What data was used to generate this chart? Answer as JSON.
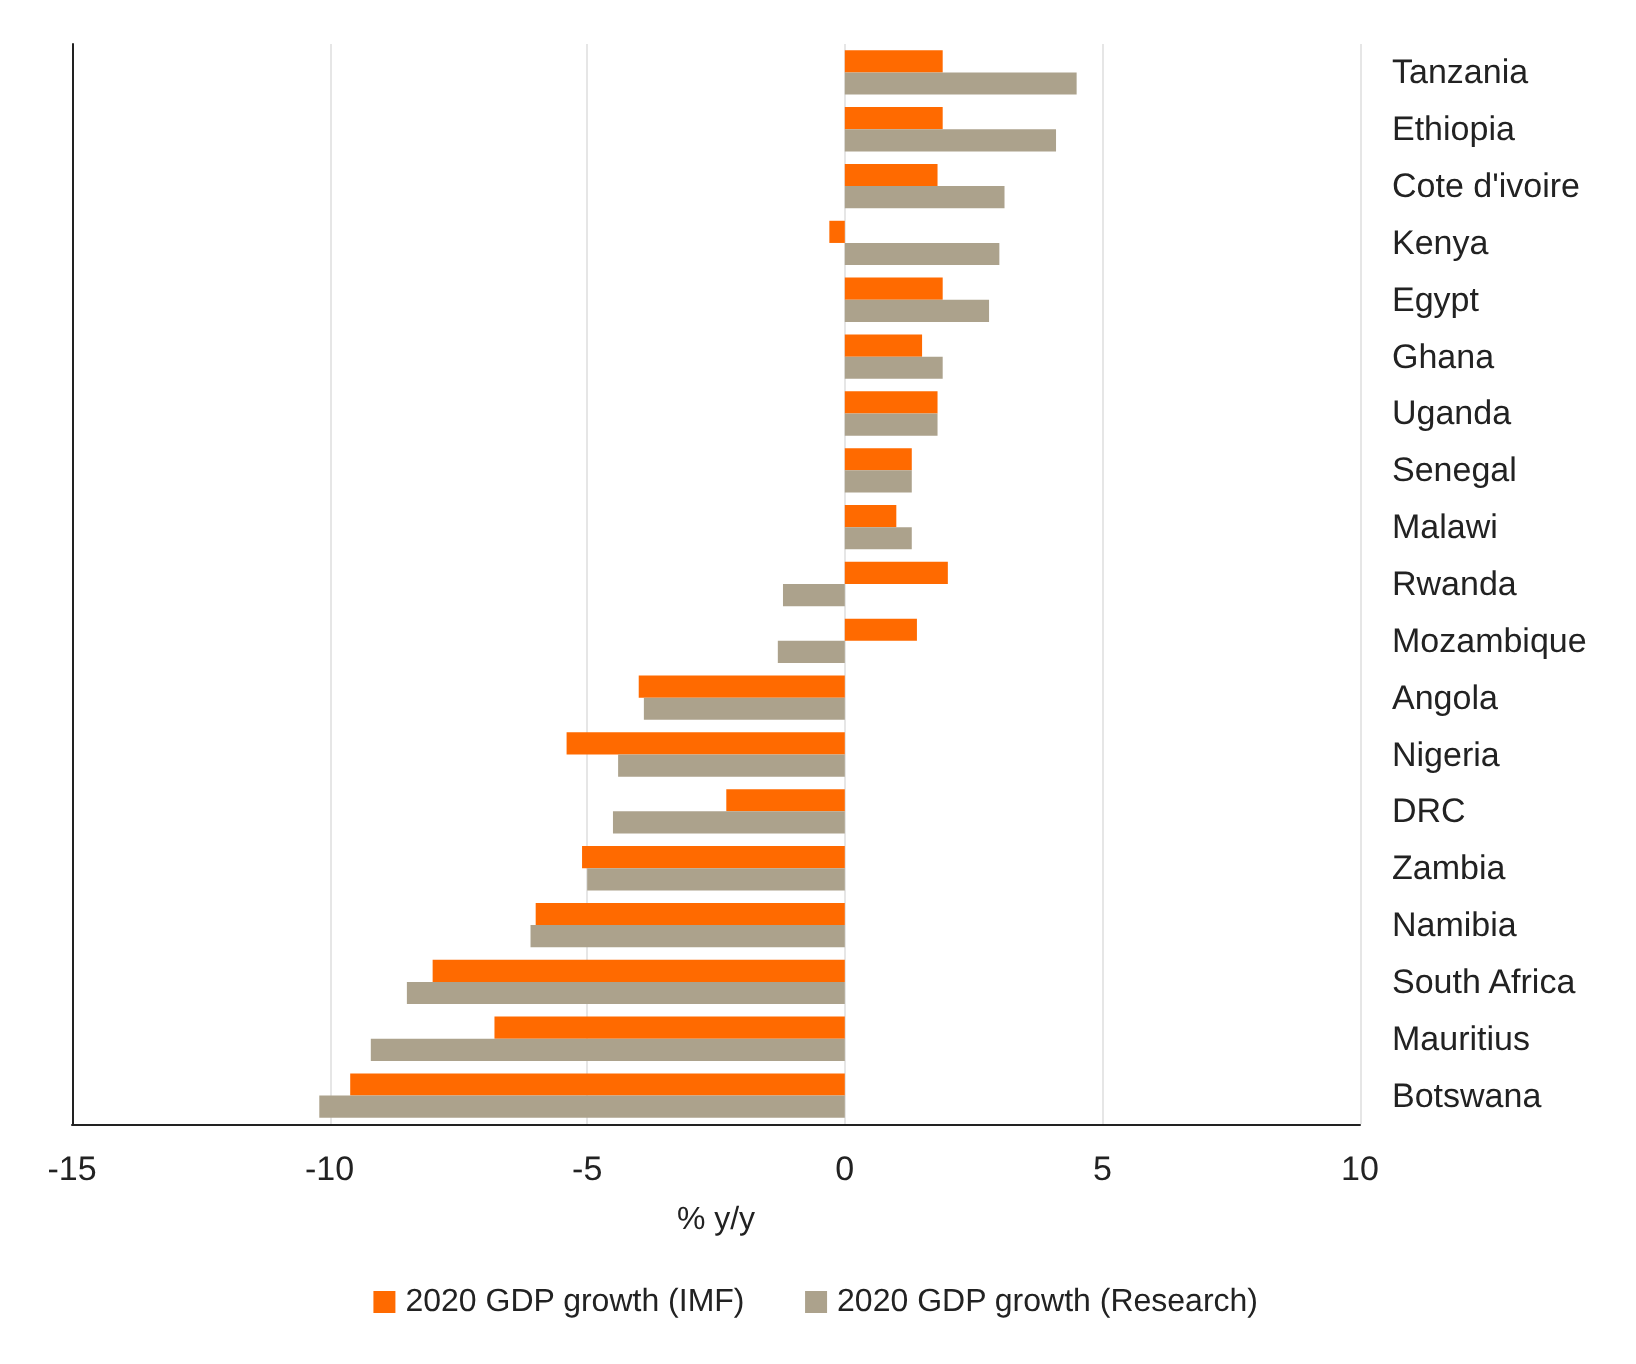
{
  "chart_data": {
    "type": "bar",
    "orientation": "horizontal",
    "xlabel": "% y/y",
    "categories": [
      "Tanzania",
      "Ethiopia",
      "Cote d'ivoire",
      "Kenya",
      "Egypt",
      "Ghana",
      "Uganda",
      "Senegal",
      "Malawi",
      "Rwanda",
      "Mozambique",
      "Angola",
      "Nigeria",
      "DRC",
      "Zambia",
      "Namibia",
      "South Africa",
      "Mauritius",
      "Botswana"
    ],
    "series": [
      {
        "name": "2020 GDP growth (IMF)",
        "color": "#ff6a00",
        "values": [
          1.9,
          1.9,
          1.8,
          -0.3,
          1.9,
          1.5,
          1.8,
          1.3,
          1.0,
          2.0,
          1.4,
          -4.0,
          -5.4,
          -2.3,
          -5.1,
          -6.0,
          -8.0,
          -6.8,
          -9.6
        ]
      },
      {
        "name": "2020 GDP growth (Research)",
        "color": "#aca28c",
        "values": [
          4.5,
          4.1,
          3.1,
          3.0,
          2.8,
          1.9,
          1.8,
          1.3,
          1.3,
          -1.2,
          -1.3,
          -3.9,
          -4.4,
          -4.5,
          -5.0,
          -6.1,
          -8.5,
          -9.2,
          -10.2
        ]
      }
    ],
    "xlim": [
      -15,
      10
    ],
    "xticks": [
      -15,
      -10,
      -5,
      0,
      5,
      10
    ],
    "grid": "x",
    "legend": "bottom"
  }
}
